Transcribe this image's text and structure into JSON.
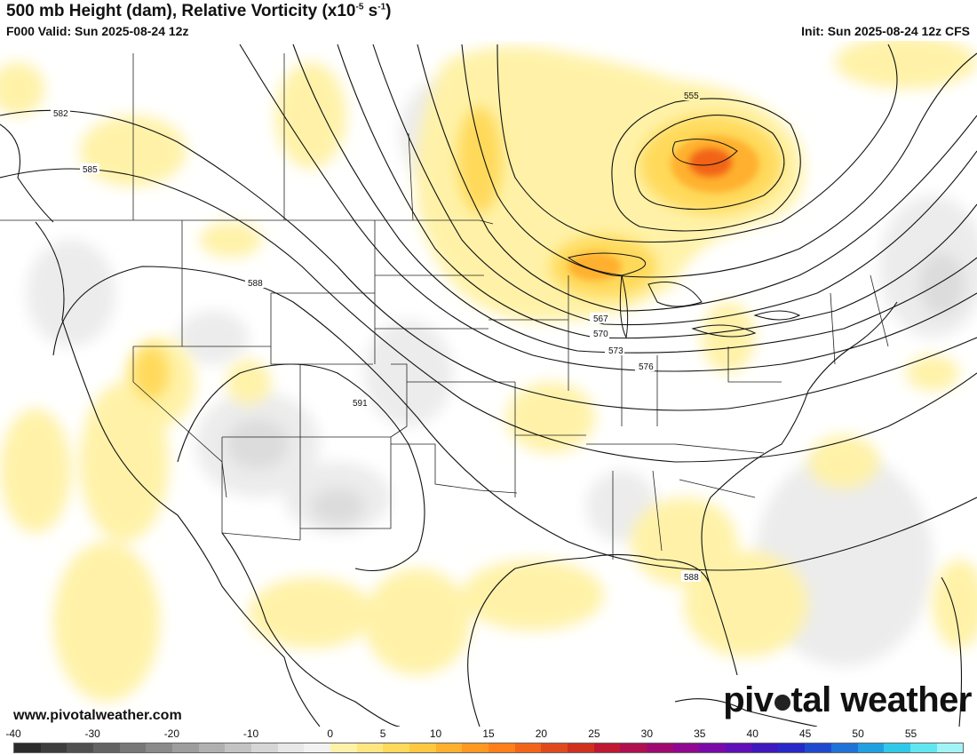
{
  "header": {
    "title_main": "500 mb Height (dam), Relative Vorticity (x10",
    "title_exp": "-5",
    "title_mid": " s",
    "title_exp2": "-1",
    "title_end": ")",
    "valid": "F000 Valid: Sun 2025-08-24 12z",
    "init": "Init: Sun 2025-08-24 12z CFS"
  },
  "footer": {
    "website": "www.pivotalweather.com",
    "brand_a": "piv",
    "brand_b": "tal weather"
  },
  "contours": {
    "c555": "555",
    "c567": "567",
    "c570": "570",
    "c573": "573",
    "c576": "576",
    "c582": "582",
    "c585": "585",
    "c588": "588",
    "c588b": "588",
    "c591": "591"
  },
  "colorbar": {
    "min": -40,
    "max": 60,
    "ticks": [
      "-40",
      "-30",
      "-20",
      "-10",
      "0",
      "5",
      "10",
      "15",
      "20",
      "25",
      "30",
      "35",
      "40",
      "45",
      "50",
      "55"
    ],
    "colors": [
      "#2b2b2b",
      "#3d3d3d",
      "#505050",
      "#636363",
      "#777777",
      "#8a8a8a",
      "#9d9d9d",
      "#b0b0b0",
      "#c3c3c3",
      "#d6d6d6",
      "#e8e8e8",
      "#f2f2f2",
      "#fff2a8",
      "#ffe680",
      "#ffd95a",
      "#ffc840",
      "#ffb02e",
      "#ff9820",
      "#ff7f1a",
      "#f26418",
      "#e04a1a",
      "#d0301e",
      "#c01830",
      "#b01050",
      "#a00a70",
      "#900890",
      "#7a0aa8",
      "#5f10b8",
      "#4018c0",
      "#2828c8",
      "#1f4ad0",
      "#1f72d8",
      "#20a0e0",
      "#30c8e8",
      "#60e6f0",
      "#a0f4f6"
    ]
  }
}
